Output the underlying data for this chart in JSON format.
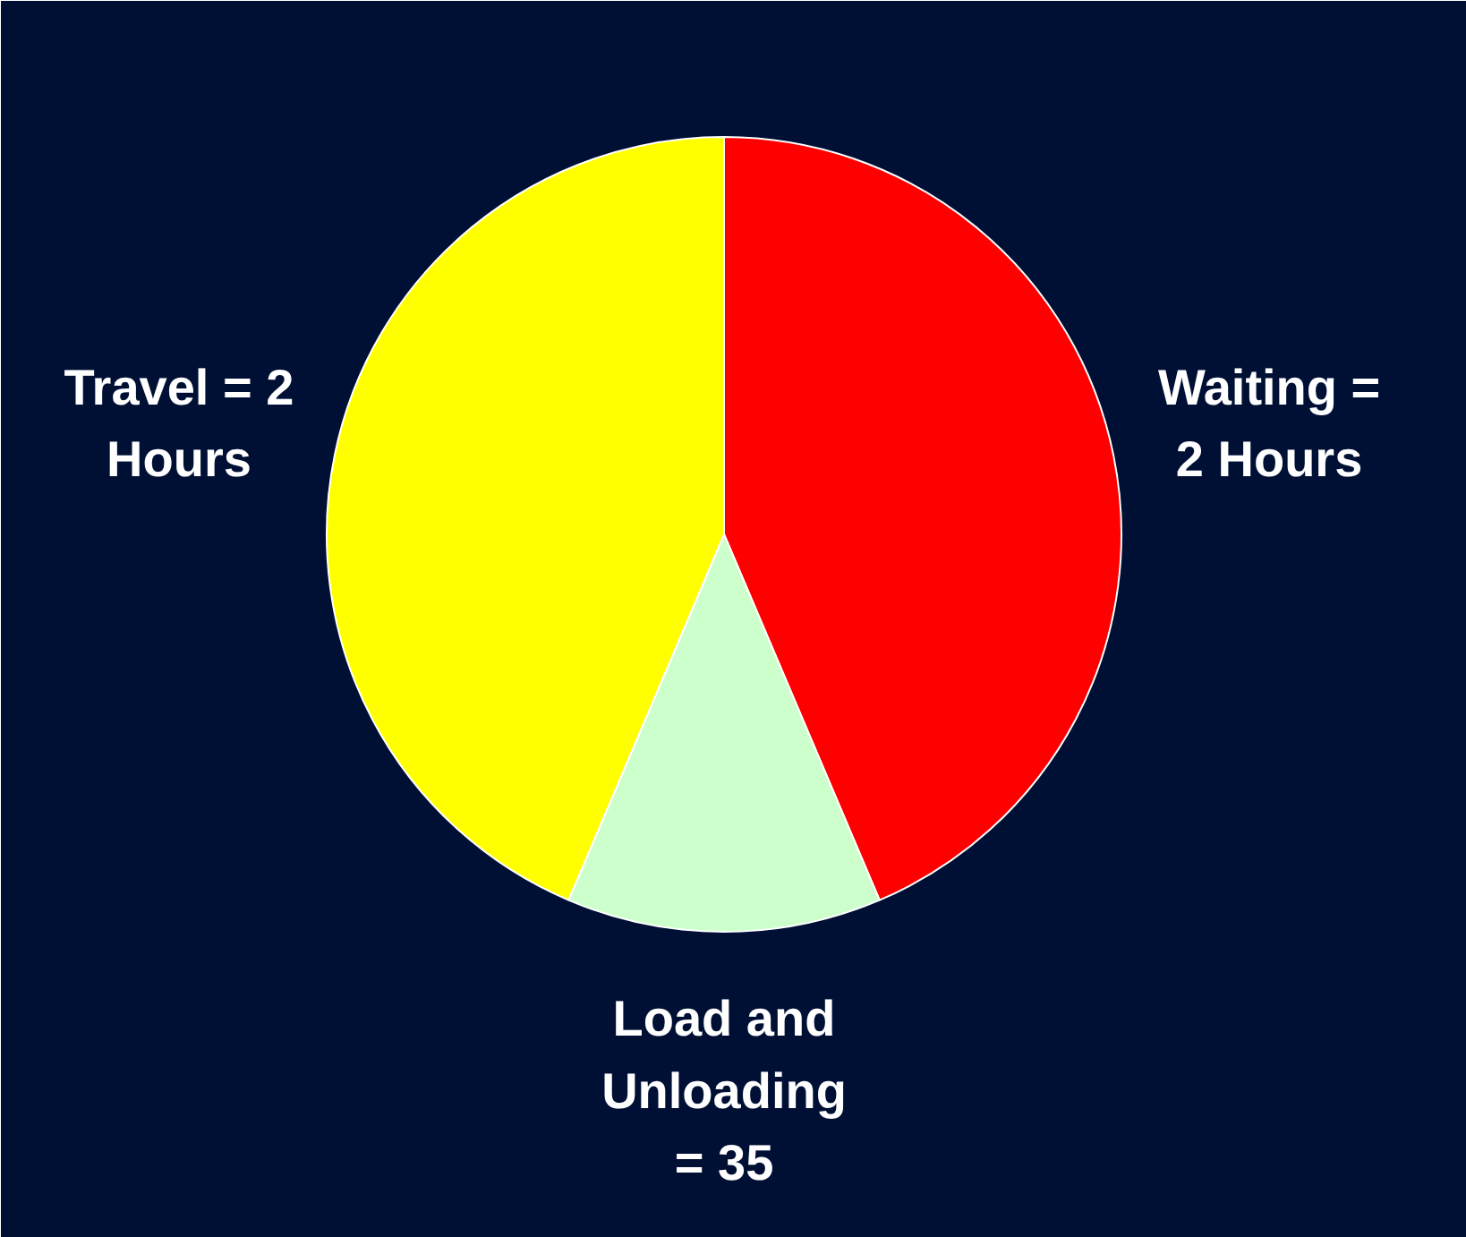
{
  "chart_data": {
    "type": "pie",
    "categories": [
      "Waiting =\n2 Hours",
      "Load and\nUnloading\n= 35",
      "Travel = 2\nHours"
    ],
    "values": [
      43.6,
      12.8,
      43.6
    ],
    "colors": [
      "#ff0000",
      "#ccffcc",
      "#ffff00"
    ]
  }
}
